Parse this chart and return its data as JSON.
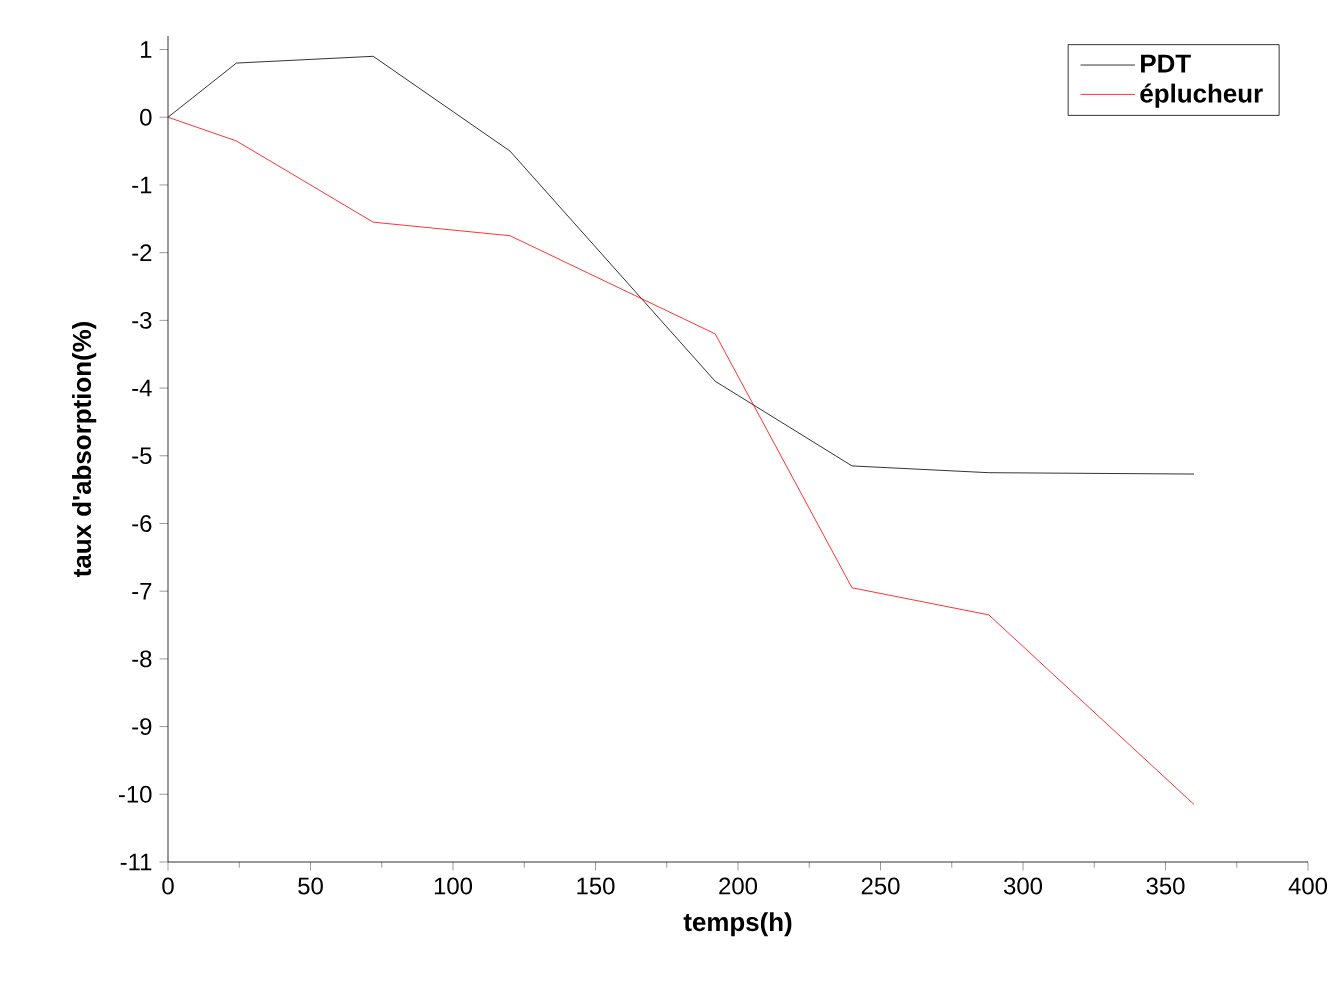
{
  "chart_data": {
    "type": "line",
    "xlabel": "temps(h)",
    "ylabel": "taux d'absorption(%)",
    "x": [
      0,
      24,
      72,
      120,
      192,
      240,
      288,
      360
    ],
    "series": [
      {
        "name": "PDT",
        "color": "#000000",
        "values": [
          0,
          0.8,
          0.9,
          -0.5,
          -3.9,
          -5.15,
          -5.25,
          -5.27
        ]
      },
      {
        "name": "éplucheur",
        "color": "#ff0000",
        "values": [
          0,
          -0.35,
          -1.55,
          -1.75,
          -3.2,
          -6.95,
          -7.35,
          -10.15
        ]
      }
    ],
    "xlim": [
      0,
      400
    ],
    "ylim": [
      -11,
      1.2
    ],
    "xticks": [
      0,
      50,
      100,
      150,
      200,
      250,
      300,
      350,
      400
    ],
    "yticks": [
      -11,
      -10,
      -9,
      -8,
      -7,
      -6,
      -5,
      -4,
      -3,
      -2,
      -1,
      0,
      1
    ],
    "legend": "top right",
    "grid": false
  }
}
